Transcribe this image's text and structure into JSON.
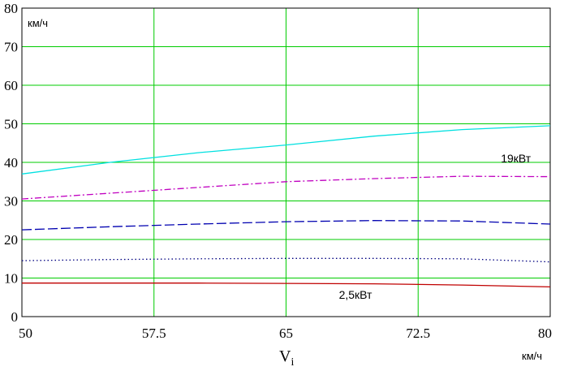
{
  "chart_data": {
    "type": "line",
    "xlabel": "V",
    "xlabel_sub": "i",
    "x_unit": "км/ч",
    "y_unit": "км/ч",
    "xlim": [
      50,
      80
    ],
    "ylim": [
      0,
      80
    ],
    "x_ticks": [
      50,
      57.5,
      65,
      72.5,
      80
    ],
    "y_ticks": [
      0,
      10,
      20,
      30,
      40,
      50,
      60,
      70,
      80
    ],
    "grid": true,
    "grid_color": "#00cc00",
    "x": [
      50,
      55,
      60,
      65,
      70,
      75,
      80
    ],
    "series": [
      {
        "color": "#00e0e0",
        "dash": "solid",
        "values": [
          37.0,
          40.0,
          42.5,
          44.5,
          46.8,
          48.5,
          49.5
        ]
      },
      {
        "color": "#c000c0",
        "dash": "dashdot",
        "values": [
          30.5,
          32.0,
          33.5,
          35.0,
          35.8,
          36.4,
          36.3
        ]
      },
      {
        "color": "#0000b0",
        "dash": "dashed",
        "values": [
          22.5,
          23.3,
          24.0,
          24.6,
          24.9,
          24.8,
          24.0
        ]
      },
      {
        "color": "#000080",
        "dash": "dotted",
        "values": [
          14.5,
          14.8,
          15.0,
          15.1,
          15.1,
          15.0,
          14.2
        ]
      },
      {
        "color": "#c00000",
        "dash": "solid",
        "values": [
          8.7,
          8.7,
          8.7,
          8.6,
          8.5,
          8.2,
          7.7
        ]
      }
    ],
    "annotations": [
      {
        "text": "19кВт",
        "x": 77.2,
        "y": 40.0
      },
      {
        "text": "2,5кВт",
        "x": 68.0,
        "y": 4.6
      }
    ]
  }
}
